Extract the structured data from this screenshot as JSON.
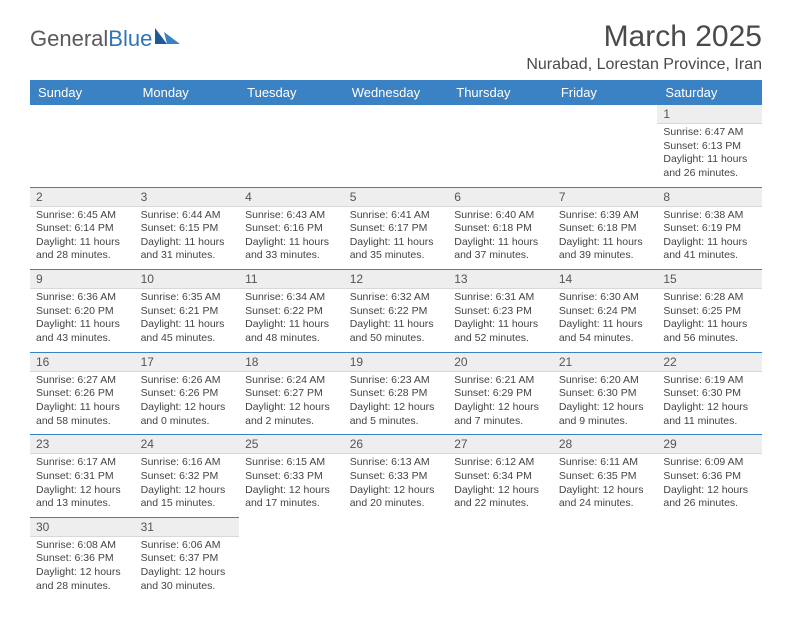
{
  "brand": {
    "part1": "General",
    "part2": "Blue"
  },
  "title": "March 2025",
  "location": "Nurabad, Lorestan Province, Iran",
  "colors": {
    "header_bg": "#3b82c4",
    "header_fg": "#ffffff",
    "daynum_bg": "#eeeeee",
    "cell_border": "#3b82c4",
    "text": "#444444",
    "title_color": "#4a4a4a"
  },
  "weekdays": [
    "Sunday",
    "Monday",
    "Tuesday",
    "Wednesday",
    "Thursday",
    "Friday",
    "Saturday"
  ],
  "first_weekday_index": 6,
  "days_in_month": 31,
  "cell_font_size_pt": 8,
  "header_font_size_pt": 10,
  "days": [
    {
      "n": 1,
      "sunrise": "6:47 AM",
      "sunset": "6:13 PM",
      "daylight": "11 hours and 26 minutes."
    },
    {
      "n": 2,
      "sunrise": "6:45 AM",
      "sunset": "6:14 PM",
      "daylight": "11 hours and 28 minutes."
    },
    {
      "n": 3,
      "sunrise": "6:44 AM",
      "sunset": "6:15 PM",
      "daylight": "11 hours and 31 minutes."
    },
    {
      "n": 4,
      "sunrise": "6:43 AM",
      "sunset": "6:16 PM",
      "daylight": "11 hours and 33 minutes."
    },
    {
      "n": 5,
      "sunrise": "6:41 AM",
      "sunset": "6:17 PM",
      "daylight": "11 hours and 35 minutes."
    },
    {
      "n": 6,
      "sunrise": "6:40 AM",
      "sunset": "6:18 PM",
      "daylight": "11 hours and 37 minutes."
    },
    {
      "n": 7,
      "sunrise": "6:39 AM",
      "sunset": "6:18 PM",
      "daylight": "11 hours and 39 minutes."
    },
    {
      "n": 8,
      "sunrise": "6:38 AM",
      "sunset": "6:19 PM",
      "daylight": "11 hours and 41 minutes."
    },
    {
      "n": 9,
      "sunrise": "6:36 AM",
      "sunset": "6:20 PM",
      "daylight": "11 hours and 43 minutes."
    },
    {
      "n": 10,
      "sunrise": "6:35 AM",
      "sunset": "6:21 PM",
      "daylight": "11 hours and 45 minutes."
    },
    {
      "n": 11,
      "sunrise": "6:34 AM",
      "sunset": "6:22 PM",
      "daylight": "11 hours and 48 minutes."
    },
    {
      "n": 12,
      "sunrise": "6:32 AM",
      "sunset": "6:22 PM",
      "daylight": "11 hours and 50 minutes."
    },
    {
      "n": 13,
      "sunrise": "6:31 AM",
      "sunset": "6:23 PM",
      "daylight": "11 hours and 52 minutes."
    },
    {
      "n": 14,
      "sunrise": "6:30 AM",
      "sunset": "6:24 PM",
      "daylight": "11 hours and 54 minutes."
    },
    {
      "n": 15,
      "sunrise": "6:28 AM",
      "sunset": "6:25 PM",
      "daylight": "11 hours and 56 minutes."
    },
    {
      "n": 16,
      "sunrise": "6:27 AM",
      "sunset": "6:26 PM",
      "daylight": "11 hours and 58 minutes."
    },
    {
      "n": 17,
      "sunrise": "6:26 AM",
      "sunset": "6:26 PM",
      "daylight": "12 hours and 0 minutes."
    },
    {
      "n": 18,
      "sunrise": "6:24 AM",
      "sunset": "6:27 PM",
      "daylight": "12 hours and 2 minutes."
    },
    {
      "n": 19,
      "sunrise": "6:23 AM",
      "sunset": "6:28 PM",
      "daylight": "12 hours and 5 minutes."
    },
    {
      "n": 20,
      "sunrise": "6:21 AM",
      "sunset": "6:29 PM",
      "daylight": "12 hours and 7 minutes."
    },
    {
      "n": 21,
      "sunrise": "6:20 AM",
      "sunset": "6:30 PM",
      "daylight": "12 hours and 9 minutes."
    },
    {
      "n": 22,
      "sunrise": "6:19 AM",
      "sunset": "6:30 PM",
      "daylight": "12 hours and 11 minutes."
    },
    {
      "n": 23,
      "sunrise": "6:17 AM",
      "sunset": "6:31 PM",
      "daylight": "12 hours and 13 minutes."
    },
    {
      "n": 24,
      "sunrise": "6:16 AM",
      "sunset": "6:32 PM",
      "daylight": "12 hours and 15 minutes."
    },
    {
      "n": 25,
      "sunrise": "6:15 AM",
      "sunset": "6:33 PM",
      "daylight": "12 hours and 17 minutes."
    },
    {
      "n": 26,
      "sunrise": "6:13 AM",
      "sunset": "6:33 PM",
      "daylight": "12 hours and 20 minutes."
    },
    {
      "n": 27,
      "sunrise": "6:12 AM",
      "sunset": "6:34 PM",
      "daylight": "12 hours and 22 minutes."
    },
    {
      "n": 28,
      "sunrise": "6:11 AM",
      "sunset": "6:35 PM",
      "daylight": "12 hours and 24 minutes."
    },
    {
      "n": 29,
      "sunrise": "6:09 AM",
      "sunset": "6:36 PM",
      "daylight": "12 hours and 26 minutes."
    },
    {
      "n": 30,
      "sunrise": "6:08 AM",
      "sunset": "6:36 PM",
      "daylight": "12 hours and 28 minutes."
    },
    {
      "n": 31,
      "sunrise": "6:06 AM",
      "sunset": "6:37 PM",
      "daylight": "12 hours and 30 minutes."
    }
  ],
  "labels": {
    "sunrise": "Sunrise:",
    "sunset": "Sunset:",
    "daylight": "Daylight:"
  }
}
